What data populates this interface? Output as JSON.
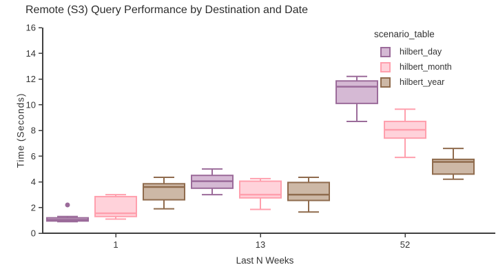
{
  "title": "Remote (S3) Query Performance by Destination and Date",
  "legend": {
    "title": "scenario_table"
  },
  "chart_data": {
    "type": "box",
    "title": "Remote (S3) Query Performance by Destination and Date",
    "xlabel": "Last N Weeks",
    "ylabel": "Time (Seconds)",
    "ylim": [
      0,
      16
    ],
    "yticks": [
      0,
      2,
      4,
      6,
      8,
      10,
      12,
      14,
      16
    ],
    "categories": [
      "1",
      "13",
      "52"
    ],
    "grid": false,
    "legend_title": "scenario_table",
    "legend_position": "top-right-inside",
    "series": [
      {
        "name": "hilbert_day",
        "fill": "#d5b9d4",
        "border": "#9b6b9a",
        "boxes": [
          {
            "category": "1",
            "min": 0.9,
            "q1": 0.95,
            "median": 1.05,
            "q3": 1.2,
            "max": 1.3,
            "outliers": [
              2.2
            ]
          },
          {
            "category": "13",
            "min": 3.0,
            "q1": 3.5,
            "median": 4.05,
            "q3": 4.5,
            "max": 5.0,
            "outliers": []
          },
          {
            "category": "52",
            "min": 8.7,
            "q1": 10.1,
            "median": 11.4,
            "q3": 11.85,
            "max": 12.2,
            "outliers": []
          }
        ]
      },
      {
        "name": "hilbert_month",
        "fill": "#ffd2da",
        "border": "#ff9fad",
        "boxes": [
          {
            "category": "1",
            "min": 1.1,
            "q1": 1.3,
            "median": 1.55,
            "q3": 2.85,
            "max": 3.0,
            "outliers": []
          },
          {
            "category": "13",
            "min": 1.85,
            "q1": 2.75,
            "median": 3.0,
            "q3": 4.05,
            "max": 4.25,
            "outliers": []
          },
          {
            "category": "52",
            "min": 5.9,
            "q1": 7.4,
            "median": 8.05,
            "q3": 8.7,
            "max": 9.65,
            "outliers": []
          }
        ]
      },
      {
        "name": "hilbert_year",
        "fill": "#cdb8a6",
        "border": "#8f6b4d",
        "boxes": [
          {
            "category": "1",
            "min": 1.9,
            "q1": 2.6,
            "median": 3.6,
            "q3": 3.85,
            "max": 4.35,
            "outliers": []
          },
          {
            "category": "13",
            "min": 1.65,
            "q1": 2.55,
            "median": 3.0,
            "q3": 3.95,
            "max": 4.35,
            "outliers": []
          },
          {
            "category": "52",
            "min": 4.2,
            "q1": 4.6,
            "median": 5.55,
            "q3": 5.75,
            "max": 6.6,
            "outliers": []
          }
        ]
      }
    ]
  }
}
